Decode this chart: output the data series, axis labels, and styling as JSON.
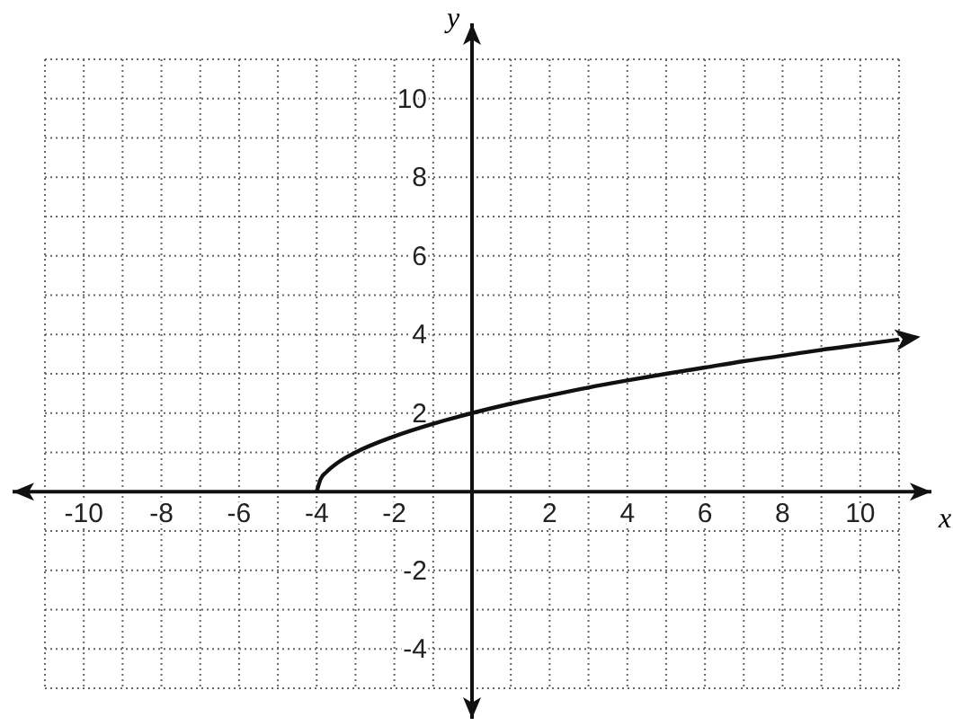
{
  "chart_data": {
    "type": "line",
    "xlabel": "x",
    "ylabel": "y",
    "x": [
      -4,
      -3.9,
      -3.75,
      -3.5,
      -3,
      -2,
      -1,
      0,
      1,
      2,
      3,
      4,
      5,
      6,
      7,
      8,
      9,
      10,
      11
    ],
    "series": [
      {
        "color": "#111111",
        "values": [
          0,
          0.32,
          0.5,
          0.71,
          1,
          1.41,
          1.73,
          2,
          2.24,
          2.45,
          2.65,
          2.83,
          3,
          3.16,
          3.32,
          3.46,
          3.61,
          3.74,
          3.87
        ]
      }
    ],
    "xlim": [
      -11,
      11
    ],
    "ylim": [
      -5,
      11
    ],
    "xticks": [
      {
        "value": -11,
        "label": null
      },
      -10,
      {
        "value": -9,
        "label": null
      },
      -8,
      {
        "value": -7,
        "label": null
      },
      -6,
      {
        "value": -5,
        "label": null
      },
      -4,
      {
        "value": -3,
        "label": null
      },
      -2,
      {
        "value": -1,
        "label": null
      },
      {
        "value": 0,
        "label": null
      },
      {
        "value": 1,
        "label": null
      },
      2,
      {
        "value": 3,
        "label": null
      },
      4,
      {
        "value": 5,
        "label": null
      },
      6,
      {
        "value": 7,
        "label": null
      },
      8,
      {
        "value": 9,
        "label": null
      },
      10,
      {
        "value": 11,
        "label": null
      }
    ],
    "yticks": [
      {
        "value": -5,
        "label": null
      },
      -4,
      {
        "value": -3,
        "label": null
      },
      -2,
      {
        "value": -1,
        "label": null
      },
      {
        "value": 0,
        "label": null
      },
      {
        "value": 1,
        "label": null
      },
      2,
      {
        "value": 3,
        "label": null
      },
      4,
      {
        "value": 5,
        "label": null
      },
      6,
      {
        "value": 7,
        "label": null
      },
      8,
      {
        "value": 9,
        "label": null
      },
      10,
      {
        "value": 11,
        "label": null
      }
    ],
    "grid": true,
    "line_style": "solid",
    "marker": "none",
    "legend": false
  }
}
